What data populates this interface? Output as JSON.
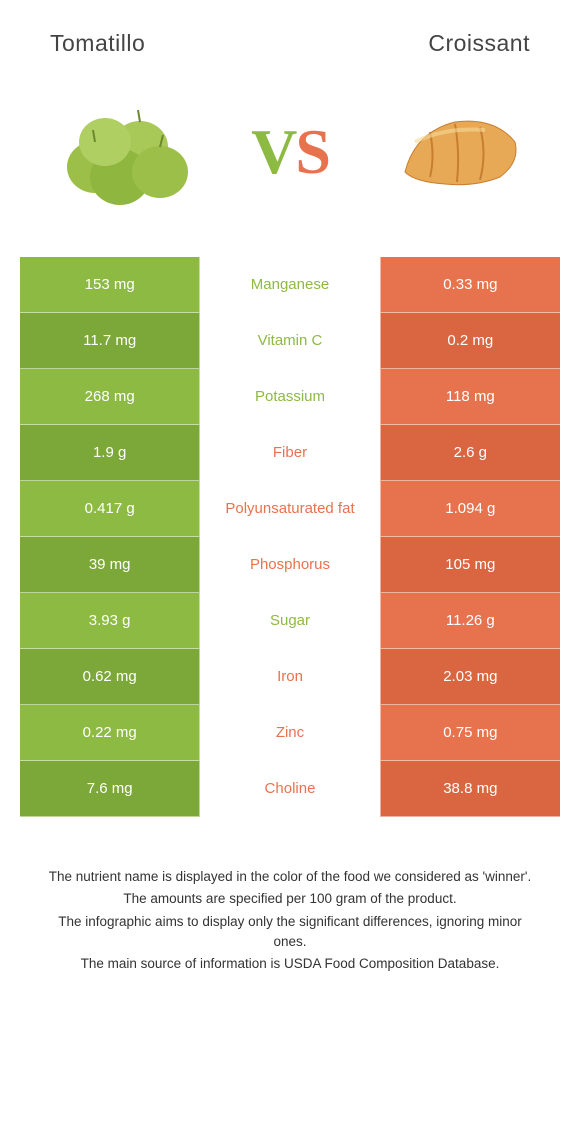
{
  "colors": {
    "left": "#8dba43",
    "right": "#e7734e",
    "leftDark": "#7ca83a",
    "rightDark": "#d96640",
    "leftText": "#8dba43",
    "rightText": "#e7734e"
  },
  "header": {
    "leftTitle": "Tomatillo",
    "rightTitle": "Croissant"
  },
  "vs": {
    "v": "V",
    "s": "S"
  },
  "rows": [
    {
      "left": "153 mg",
      "label": "Manganese",
      "right": "0.33 mg",
      "winner": "left"
    },
    {
      "left": "11.7 mg",
      "label": "Vitamin C",
      "right": "0.2 mg",
      "winner": "left"
    },
    {
      "left": "268 mg",
      "label": "Potassium",
      "right": "118 mg",
      "winner": "left"
    },
    {
      "left": "1.9 g",
      "label": "Fiber",
      "right": "2.6 g",
      "winner": "right"
    },
    {
      "left": "0.417 g",
      "label": "Polyunsaturated fat",
      "right": "1.094 g",
      "winner": "right"
    },
    {
      "left": "39 mg",
      "label": "Phosphorus",
      "right": "105 mg",
      "winner": "right"
    },
    {
      "left": "3.93 g",
      "label": "Sugar",
      "right": "11.26 g",
      "winner": "left"
    },
    {
      "left": "0.62 mg",
      "label": "Iron",
      "right": "2.03 mg",
      "winner": "right"
    },
    {
      "left": "0.22 mg",
      "label": "Zinc",
      "right": "0.75 mg",
      "winner": "right"
    },
    {
      "left": "7.6 mg",
      "label": "Choline",
      "right": "38.8 mg",
      "winner": "right"
    }
  ],
  "footer": {
    "line1": "The nutrient name is displayed in the color of the food we considered as 'winner'.",
    "line2": "The amounts are specified per 100 gram of the product.",
    "line3": "The infographic aims to display only the significant differences, ignoring minor ones.",
    "line4": "The main source of information is USDA Food Composition Database."
  }
}
